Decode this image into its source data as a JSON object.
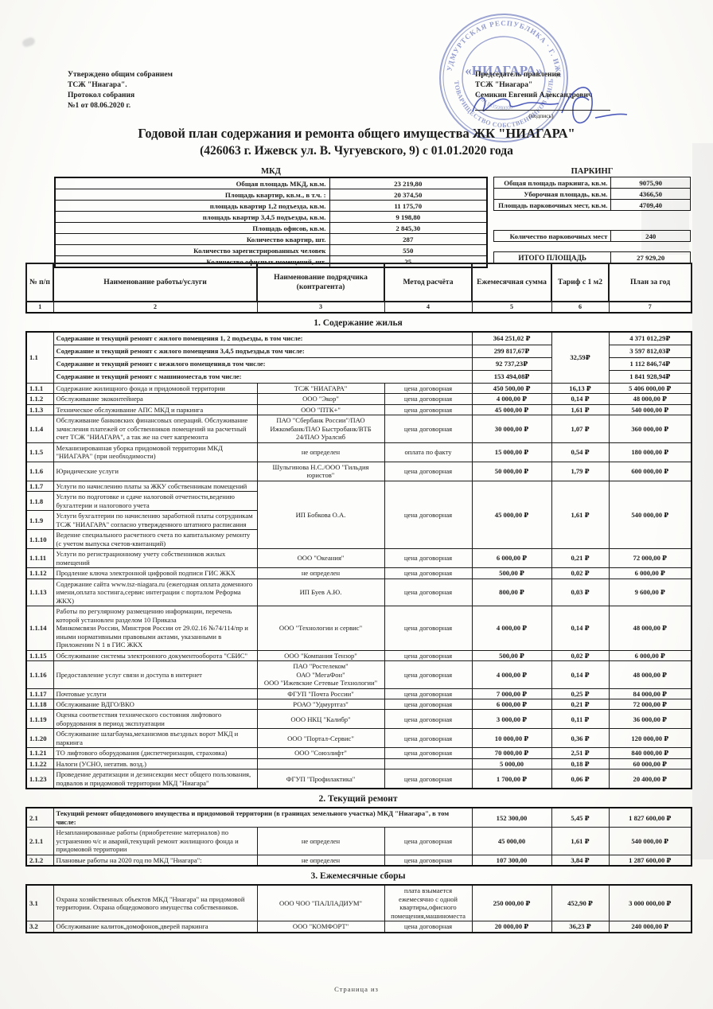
{
  "page": {
    "approved_lines": [
      "Утверждено общим собранием",
      "ТСЖ \"Ниагара\".",
      "Протокол собрания",
      "№1 от 08.06.2020 г."
    ],
    "chairman": {
      "line1": "Председатель правления",
      "line2": "ТСЖ \"Ниагара\"",
      "line3": "Семикин Евгений Александрович",
      "sign_caption": "(подпись)"
    },
    "stamp": {
      "ring_top": "УДМУРТСКАЯ РЕСПУБЛИКА · Г. ИЖЕВСК",
      "ring_bottom": "ТОВАРИЩЕСТВО СОБСТВЕННИКОВ ЖИЛЬЯ",
      "inner_small": "ИНН 1835080000",
      "center": "«НИАГАРА»",
      "color": "#3d4da8"
    },
    "title_line1": "Годовой план содержания и ремонта общего имущества ЖК \"НИАГАРА\"",
    "title_line2": "(426063 г. Ижевск ул. В. Чугуевского, 9) с 01.01.2020 года",
    "footer": "Страница  из"
  },
  "mkd_table": {
    "title": "МКД",
    "rows": [
      [
        "Общая площадь МКД, кв.м.",
        "23 219,80"
      ],
      [
        "Площадь квартир, кв.м., в т.ч. :",
        "20 374,50"
      ],
      [
        "площадь квартир 1,2 подъезда, кв.м.",
        "11 175,70"
      ],
      [
        "площадь квартир 3,4,5 подъезды, кв.м.",
        "9 198,80"
      ],
      [
        "Площадь офисов, кв.м.",
        "2 845,30"
      ],
      [
        "Количество квартир, шт.",
        "287"
      ],
      [
        "Количество зарегистрированных человек",
        "550"
      ],
      [
        "Количество офисных помещений, шт.",
        "25"
      ]
    ]
  },
  "parking_table": {
    "title": "ПАРКИНГ",
    "rows": [
      [
        "Общая площадь паркинга, кв.м.",
        "9075,90"
      ],
      [
        "Уборочная площадь, кв.м.",
        "4366,50"
      ],
      [
        "Площадь парковочных мест, кв.м.",
        "4709,40"
      ]
    ],
    "spots_label": "Количество парковочных мест",
    "spots_value": "240",
    "total_label": "ИТОГО ПЛОЩАДЬ",
    "total_value": "27 929,20"
  },
  "main_table": {
    "headers": [
      "№ п/п",
      "Наименование работы/услуги",
      "Наименование подрядчика (контрагента)",
      "Метод расчёта",
      "Ежемесячная сумма",
      "Тариф с 1 м2",
      "План за год"
    ],
    "col_numbers": [
      "1",
      "2",
      "3",
      "4",
      "5",
      "6",
      "7"
    ]
  },
  "sections": [
    {
      "title": "1. Содержание жилья",
      "rows": [
        {
          "t": "sum4",
          "num": "1.1",
          "tariff": "32,59₽",
          "lines": [
            {
              "d": "Содержание и текущий ремонт с жилого помещения  1, 2 подъезды, в том числе:",
              "m": "364 251,02 ₽",
              "p": "4 371 012,29₽"
            },
            {
              "d": "Содержание и текущий ремонт с жилого помещения 3,4,5 подъезды,в том числе:",
              "m": "299 817,67₽",
              "p": "3 597 812,03₽"
            },
            {
              "d": "Содержание и текущий ремонт с нежилого помещения,в том числе:",
              "m": "92 737,23₽",
              "p": "1 112 846,74₽"
            },
            {
              "d": "Содержание и текущий ремонт с машиноместа,в том числе:",
              "m": "153 494,08₽",
              "p": "1 841 928,94₽"
            }
          ]
        },
        {
          "t": "r",
          "num": "1.1.1",
          "d": "Содержание жилищного фонда и придомовой территории",
          "c": "ТСЖ \"НИАГАРА\"",
          "me": "цена договорная",
          "m": "450 500,00 ₽",
          "tr": "16,13 ₽",
          "p": "5 406 000,00 ₽"
        },
        {
          "t": "r",
          "num": "1.1.2",
          "d": "Обслуживание экоконтейнера",
          "c": "ООО \"Экор\"",
          "me": "цена договорная",
          "m": "4 000,00 ₽",
          "tr": "0,14 ₽",
          "p": "48 000,00 ₽"
        },
        {
          "t": "r",
          "num": "1.1.3",
          "d": "Техническое обслуживание АПС МКД и паркинга",
          "c": "ООО \"ПТК+\"",
          "me": "цена договорная",
          "m": "45 000,00 ₽",
          "tr": "1,61 ₽",
          "p": "540 000,00 ₽"
        },
        {
          "t": "r",
          "num": "1.1.4",
          "d": "Обслуживание банковских финансовых операций. Обслуживание зачисления платежей от собственников  помещений на расчетный счет ТСЖ \"НИАГАРА\", а так же на счет капремонта",
          "c": "ПАО \"Сбербанк России\"/ПАО\nИжкомбанк/ПАО Быстробанк/ВТБ\n24/ПАО Уралсиб",
          "me": "цена договорная",
          "m": "30 000,00 ₽",
          "tr": "1,07 ₽",
          "p": "360 000,00 ₽"
        },
        {
          "t": "r",
          "num": "1.1.5",
          "d": "Механизированная уборка придомовой территории МКД \"НИАГАРА\" (при необходимости)",
          "c": "не определен",
          "me": "оплата по факту",
          "m": "15 000,00 ₽",
          "tr": "0,54 ₽",
          "p": "180 000,00 ₽"
        },
        {
          "t": "r",
          "num": "1.1.6",
          "d": "Юридические услуги",
          "c": "Шульгинова Н.С./ООО \"Гильдия\nюристов\"",
          "me": "цена договорная",
          "m": "50 000,00 ₽",
          "tr": "1,79 ₽",
          "p": "600 000,00 ₽"
        },
        {
          "t": "g",
          "c": "ИП Бобкова О.А.",
          "me": "цена договорная",
          "m": "45 000,00 ₽",
          "tr": "1,61 ₽",
          "p": "540 000,00 ₽",
          "rows": [
            {
              "num": "1.1.7",
              "d": "Услуги по начислению платы за ЖКУ собственникам помещений"
            },
            {
              "num": "1.1.8",
              "d": "Услуги по подготовке и сдаче налоговой отчетности,ведению бухгалтерии и налогового учета"
            },
            {
              "num": "1.1.9",
              "d": "Услуги бухгалтерии по начислению заработной платы сотрудникам ТСЖ \"НИАГАРА\" согласно утвержденного штатного расписания"
            },
            {
              "num": "1.1.10",
              "d": "Ведение специального расчетного счета по капитальному ремонту (с учетом выпуска счетов-квитанций)"
            }
          ]
        },
        {
          "t": "r",
          "num": "1.1.11",
          "d": "Услуги по регистрационному учету собственников  жилых помещений",
          "c": "ООО \"Океания\"",
          "me": "цена договорная",
          "m": "6 000,00 ₽",
          "tr": "0,21 ₽",
          "p": "72 000,00 ₽"
        },
        {
          "t": "r",
          "num": "1.1.12",
          "d": "Продление ключа электронной цифровой подписи ГИС ЖКХ",
          "c": "не определен",
          "me": "цена договорная",
          "m": "500,00 ₽",
          "tr": "0,02 ₽",
          "p": "6 000,00 ₽"
        },
        {
          "t": "r",
          "num": "1.1.13",
          "d": "Содержание сайта www.tsz-niagara.ru (ежегодная оплата доменного имени,оплата хостинга,сервис интеграции с порталом Реформа ЖКХ)",
          "c": "ИП Буев А.Ю.",
          "me": "цена договорная",
          "m": "800,00 ₽",
          "tr": "0,03 ₽",
          "p": "9 600,00 ₽"
        },
        {
          "t": "r",
          "num": "1.1.14",
          "d": "Работы по регулярному размещению информации, перечень которой установлен разделом 10 Приказа\nМинкомсвязи России, Минстроя России от 29.02.16 №74/114/пр и иными нормативными правовыми актами, указанными в Приложении N 1 в ГИС ЖКХ",
          "c": "ООО \"Технологии и сервис\"",
          "me": "цена договорная",
          "m": "4 000,00 ₽",
          "tr": "0,14 ₽",
          "p": "48 000,00 ₽"
        },
        {
          "t": "r",
          "num": "1.1.15",
          "d": "Обслуживание системы электронного документооборота \"СБИС\"",
          "c": "ООО \"Компания Тензор\"",
          "me": "цена договорная",
          "m": "500,00 ₽",
          "tr": "0,02 ₽",
          "p": "6 000,00 ₽"
        },
        {
          "t": "r",
          "num": "1.1.16",
          "d": "Предоставление услуг связи и доступа в интернет",
          "c": "ПАО \"Ростелеком\"\nОАО  \"МегаФон\"\nООО \"Ижевские Сетевые Технологии\"",
          "me": "цена договорная",
          "m": "4 000,00 ₽",
          "tr": "0,14 ₽",
          "p": "48 000,00 ₽"
        },
        {
          "t": "r",
          "num": "1.1.17",
          "d": "Почтовые услуги",
          "c": "ФГУП \"Почта России\"",
          "me": "цена договорная",
          "m": "7 000,00 ₽",
          "tr": "0,25 ₽",
          "p": "84 000,00 ₽"
        },
        {
          "t": "r",
          "num": "1.1.18",
          "d": "Обслуживание ВДГО/ВКО",
          "c": "РОАО \"Удмуртгаз\"",
          "me": "цена договорная",
          "m": "6 000,00 ₽",
          "tr": "0,21 ₽",
          "p": "72 000,00 ₽"
        },
        {
          "t": "r",
          "num": "1.1.19",
          "d": "Оценка соответствия технического состояния лифтового оборудования в период эксплуатации",
          "c": "ООО НКЦ \"Калибр\"",
          "me": "цена договорная",
          "m": "3 000,00 ₽",
          "tr": "0,11 ₽",
          "p": "36 000,00 ₽"
        },
        {
          "t": "r",
          "num": "1.1.20",
          "d": "Обслуживание шлагбаума,механизмов въездных ворот МКД и паркинга",
          "c": "ООО \"Портал-Сервис\"",
          "me": "цена договорная",
          "m": "10 000,00 ₽",
          "tr": "0,36 ₽",
          "p": "120 000,00 ₽"
        },
        {
          "t": "r",
          "num": "1.1.21",
          "d": "ТО лифтового оборудования  (диспетчеризация, страховка)",
          "c": "ООО \"Союзлифт\"",
          "me": "цена договорная",
          "m": "70 000,00 ₽",
          "tr": "2,51 ₽",
          "p": "840 000,00 ₽"
        },
        {
          "t": "r",
          "num": "1.1.22",
          "d": "Налоги (УСНО, негатив. возд.)",
          "c": "",
          "me": "",
          "m": "5 000,00",
          "tr": "0,18 ₽",
          "p": "60 000,00 ₽"
        },
        {
          "t": "r",
          "num": "1.1.23",
          "d": "Проведение дератизации и дезинсекции мест общего пользования, подвалов и придомовой территории МКД \"Ниагара\"",
          "c": "ФГУП \"Профилактика\"",
          "me": "цена договорная",
          "m": "1 700,00 ₽",
          "tr": "0,06 ₽",
          "p": "20 400,00 ₽"
        }
      ]
    },
    {
      "title": "2. Текущий ремонт",
      "rows": [
        {
          "t": "sum",
          "num": "2.1",
          "d": "Текущий ремонт общедомового имущества и придомовой территории (в границах земельного участка) МКД \"Ниагара\", в том числе:",
          "m": "152 300,00",
          "tr": "5,45 ₽",
          "p": "1 827 600,00 ₽"
        },
        {
          "t": "r",
          "num": "2.1.1",
          "d": "Незапланированные работы (приобретение материалов) по устранению ч/с и аварий,текущий ремонт жилищного фонда и придомовой территории",
          "c": "не определен",
          "me": "цена договорная",
          "m": "45 000,00",
          "tr": "1,61 ₽",
          "p": "540 000,00 ₽"
        },
        {
          "t": "r",
          "num": "2.1.2",
          "d": "Плановые работы на 2020 год по МКД \"Ниагара\":",
          "c": "не определен",
          "me": "цена договорная",
          "m": "107 300,00",
          "tr": "3,84 ₽",
          "p": "1 287 600,00 ₽"
        }
      ]
    },
    {
      "title": "3. Ежемесячные сборы",
      "rows": [
        {
          "t": "r",
          "num": "3.1",
          "d": "Охрана хозяйственных объектов МКД \"Ниагара\" на придомовой территории. Охрана общедомового имущества собственников.",
          "c": "ООО ЧОО \"ПАЛЛАДИУМ\"",
          "me": "плата взымается ежемесячно с одной квартиры,офисного помещения,машиноместа",
          "m": "250 000,00 ₽",
          "tr": "452,90 ₽",
          "p": "3 000 000,00 ₽"
        },
        {
          "t": "r",
          "num": "3.2",
          "d": "Обслуживание калиток,домофонов,дверей паркинга",
          "c": "ООО \"КОМФОРТ\"",
          "me": "цена договорная",
          "m": "20 000,00 ₽",
          "tr": "36,23 ₽",
          "p": "240 000,00 ₽"
        }
      ]
    }
  ]
}
